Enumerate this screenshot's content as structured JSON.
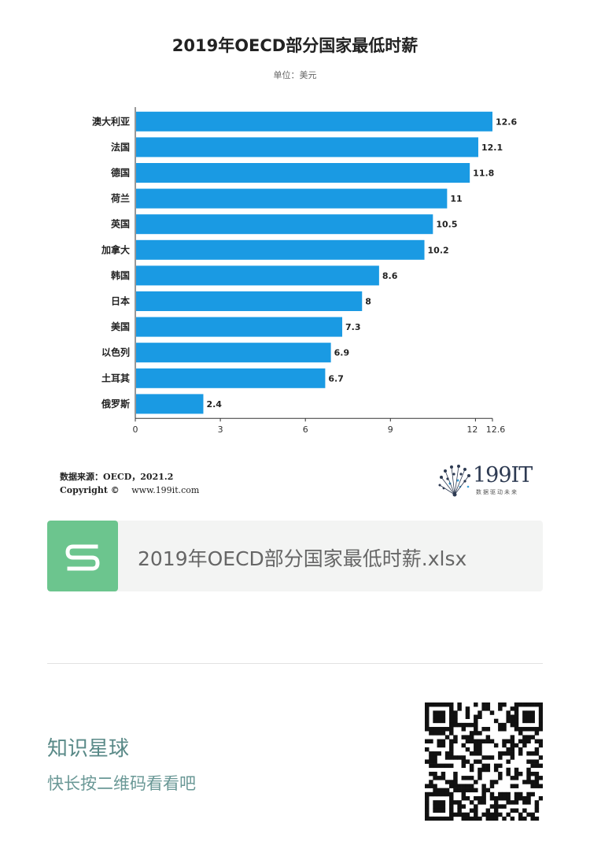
{
  "chart_data": {
    "type": "bar",
    "orientation": "horizontal",
    "title": "2019年OECD部分国家最低时薪",
    "subtitle": "单位：美元",
    "categories": [
      "澳大利亚",
      "法国",
      "德国",
      "荷兰",
      "英国",
      "加拿大",
      "韩国",
      "日本",
      "美国",
      "以色列",
      "土耳其",
      "俄罗斯"
    ],
    "values": [
      12.6,
      12.1,
      11.8,
      11,
      10.5,
      10.2,
      8.6,
      8,
      7.3,
      6.9,
      6.7,
      2.4
    ],
    "value_labels": [
      "12.6",
      "12.1",
      "11.8",
      "11",
      "10.5",
      "10.2",
      "8.6",
      "8",
      "7.3",
      "6.9",
      "6.7",
      "2.4"
    ],
    "xticks": [
      0,
      3,
      6,
      9,
      12,
      12.6
    ],
    "xtick_labels": [
      "0",
      "3",
      "6",
      "9",
      "12",
      "12.6"
    ],
    "xlim": [
      0,
      12.6
    ],
    "grid": false,
    "legend": "none",
    "bar_color": "#1a9ae3"
  },
  "footer": {
    "source": "数据来源：OECD，2021.2",
    "copyright_label": "Copyright ©",
    "website": "www.199it.com",
    "logo_text": "199IT",
    "logo_subtext": "数据驱动未来"
  },
  "file_card": {
    "icon": "spreadsheet-s-icon",
    "icon_color": "#6cc58e",
    "filename": "2019年OECD部分国家最低时薪.xlsx"
  },
  "planet": {
    "title": "知识星球",
    "subtitle": "快长按二维码看看吧",
    "qr_icon": "qr-code-icon"
  }
}
